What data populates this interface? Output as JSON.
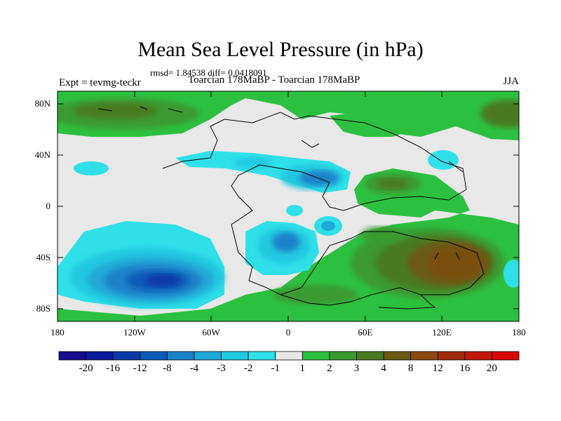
{
  "title": "Mean Sea Level Pressure (in hPa)",
  "stats": "rmsd= 1.84538 diff= 0.0418091",
  "experiment": "Expt = tevmg-teckr",
  "comparison": "Toarcian 178MaBP - Toarcian 178MaBP",
  "season": "JJA",
  "lat_ticks": [
    "80N",
    "40N",
    "0",
    "40S",
    "80S"
  ],
  "lon_ticks": [
    "180",
    "120W",
    "60W",
    "0",
    "60E",
    "120E",
    "180"
  ],
  "colorbar": {
    "labels": [
      "-20",
      "-16",
      "-12",
      "-8",
      "-4",
      "-3",
      "-2",
      "-1",
      "1",
      "2",
      "3",
      "4",
      "8",
      "12",
      "16",
      "20"
    ],
    "colors": [
      "#1a0a8c",
      "#0a1a9a",
      "#0a3aa8",
      "#0a5ab8",
      "#1a82c8",
      "#20a8d8",
      "#20c8e0",
      "#30e0e8",
      "#e8e8e8",
      "#2cc040",
      "#3a9a30",
      "#4a7a20",
      "#6a5a14",
      "#8a4a10",
      "#a02a0c",
      "#c0180a",
      "#d80808"
    ]
  }
}
